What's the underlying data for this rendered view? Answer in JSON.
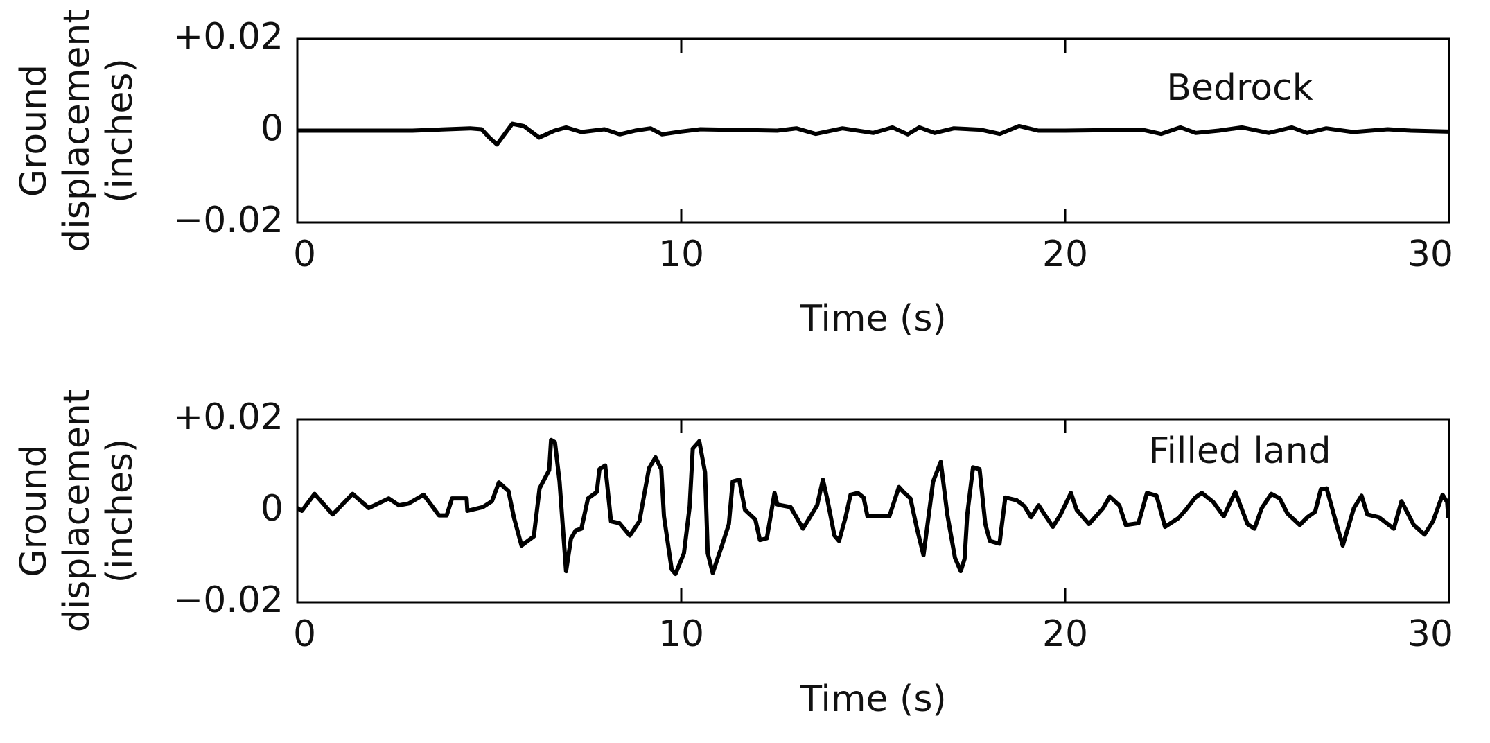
{
  "chart_data": [
    {
      "type": "line",
      "annotation": "Bedrock",
      "xlabel": "Time (s)",
      "ylabel": [
        "Ground",
        "displacement",
        "(inches)"
      ],
      "color": "#000000",
      "x": [
        0,
        3,
        4.5,
        4.8,
        5.0,
        5.2,
        5.6,
        5.9,
        6.3,
        6.7,
        7.0,
        7.4,
        8.0,
        8.4,
        8.8,
        9.2,
        9.5,
        10,
        10.5,
        12.5,
        13,
        13.5,
        14.2,
        15,
        15.5,
        15.9,
        16.2,
        16.6,
        17.1,
        17.8,
        18.3,
        18.8,
        19.3,
        20,
        22,
        22.5,
        23,
        23.4,
        24,
        24.6,
        25.3,
        25.9,
        26.3,
        26.8,
        27.5,
        28.4,
        29,
        30
      ],
      "values": [
        0,
        0,
        0.0005,
        0.0003,
        -0.0015,
        -0.003,
        0.0015,
        0.001,
        -0.0015,
        0,
        0.0007,
        -0.0003,
        0.0003,
        -0.0008,
        0,
        0.0005,
        -0.0008,
        -0.0002,
        0.0003,
        0,
        0.0005,
        -0.0007,
        0.0005,
        -0.0005,
        0.0007,
        -0.0008,
        0.0007,
        -0.0005,
        0.0005,
        0.0002,
        -0.0007,
        0.001,
        0,
        0,
        0.0002,
        -0.0007,
        0.0007,
        -0.0005,
        0,
        0.0007,
        -0.0005,
        0.0007,
        -0.0005,
        0.0005,
        -0.0003,
        0.0003,
        0,
        -0.0002
      ],
      "xlim": [
        0,
        30
      ],
      "xticks": [
        0,
        10,
        20,
        30
      ],
      "ylim": [
        -0.02,
        0.02
      ],
      "yticks": [
        {
          "value": 0.02,
          "label": "+0.02"
        },
        0,
        {
          "value": -0.02,
          "label": "−0.02"
        }
      ]
    },
    {
      "type": "line",
      "annotation": "Filled land",
      "xlabel": "Time (s)",
      "ylabel": [
        "Ground",
        "displacement",
        "(inches)"
      ],
      "color": "#000000",
      "x": [
        0,
        0.12,
        0.45,
        0.92,
        1.44,
        1.86,
        2.38,
        2.65,
        2.9,
        3.29,
        3.69,
        3.89,
        4.03,
        4.41,
        4.43,
        4.83,
        5.07,
        5.25,
        5.5,
        5.64,
        5.84,
        6.16,
        6.31,
        6.56,
        6.61,
        6.71,
        6.83,
        7.0,
        7.13,
        7.25,
        7.4,
        7.57,
        7.8,
        7.87,
        8.02,
        8.17,
        8.39,
        8.66,
        8.91,
        9.16,
        9.33,
        9.48,
        9.55,
        9.75,
        9.85,
        10.07,
        10.22,
        10.3,
        10.47,
        10.62,
        10.69,
        10.82,
        11.06,
        11.24,
        11.34,
        11.51,
        11.66,
        11.93,
        12.05,
        12.23,
        12.43,
        12.5,
        12.6,
        12.85,
        13.17,
        13.54,
        13.69,
        13.81,
        13.99,
        14.11,
        14.28,
        14.41,
        14.6,
        14.75,
        14.85,
        15.42,
        15.67,
        15.79,
        15.97,
        16.14,
        16.31,
        16.56,
        16.76,
        16.93,
        17.13,
        17.28,
        17.38,
        17.45,
        17.6,
        17.77,
        17.92,
        18.04,
        18.29,
        18.44,
        18.74,
        18.94,
        19.11,
        19.31,
        19.48,
        19.68,
        19.88,
        20.15,
        20.3,
        20.62,
        20.99,
        21.16,
        21.41,
        21.58,
        21.91,
        22.13,
        22.38,
        22.6,
        22.95,
        23.14,
        23.39,
        23.56,
        23.86,
        24.13,
        24.43,
        24.75,
        24.93,
        25.12,
        25.37,
        25.59,
        25.79,
        26.11,
        26.31,
        26.51,
        26.66,
        26.81,
        27.08,
        27.23,
        27.52,
        27.72,
        27.87,
        28.17,
        28.56,
        28.76,
        29.08,
        29.36,
        29.58,
        29.83,
        29.95,
        29.98
      ],
      "values": [
        0.0006,
        0,
        0.0037,
        -0.0008,
        0.0037,
        0.0006,
        0.0027,
        0.0012,
        0.0016,
        0.0035,
        -0.001,
        -0.001,
        0.0027,
        0.0027,
        0,
        0.0008,
        0.0021,
        0.0062,
        0.0043,
        -0.0014,
        -0.0076,
        -0.0056,
        0.0049,
        0.0089,
        0.0155,
        0.015,
        0.0064,
        -0.0132,
        -0.006,
        -0.0043,
        -0.0039,
        0.0027,
        0.0041,
        0.0091,
        0.0099,
        -0.0023,
        -0.0027,
        -0.0054,
        -0.0023,
        0.0093,
        0.0117,
        0.0091,
        -0.0012,
        -0.0128,
        -0.0138,
        -0.0093,
        0.001,
        0.0136,
        0.0152,
        0.0084,
        -0.0093,
        -0.0136,
        -0.0076,
        -0.0029,
        0.0064,
        0.0068,
        0.0002,
        -0.0019,
        -0.0064,
        -0.006,
        0.0039,
        0.0014,
        0.0012,
        0.0008,
        -0.0039,
        0.0012,
        0.0068,
        0.0023,
        -0.0054,
        -0.0066,
        -0.0014,
        0.0035,
        0.0039,
        0.0029,
        -0.0012,
        -0.0012,
        0.0052,
        0.0041,
        0.0027,
        -0.0039,
        -0.0097,
        0.0064,
        0.0107,
        -0.0008,
        -0.0103,
        -0.0132,
        -0.0105,
        -0.0008,
        0.0095,
        0.0091,
        -0.0029,
        -0.0066,
        -0.0072,
        0.0029,
        0.0023,
        0.001,
        -0.0014,
        0.0012,
        -0.001,
        -0.0035,
        -0.0008,
        0.0039,
        0.0002,
        -0.0029,
        0.0006,
        0.0031,
        0.0012,
        -0.0031,
        -0.0027,
        0.0039,
        0.0033,
        -0.0035,
        -0.0016,
        0.0002,
        0.0029,
        0.0039,
        0.0019,
        -0.0012,
        0.0041,
        -0.0029,
        -0.0039,
        0.0006,
        0.0037,
        0.0027,
        -0.0006,
        -0.0031,
        -0.0014,
        -0.0002,
        0.0047,
        0.0049,
        -0.0033,
        -0.0076,
        0.0006,
        0.0033,
        -0.0008,
        -0.0014,
        -0.0039,
        0.0021,
        -0.0031,
        -0.0052,
        -0.0023,
        0.0035,
        0.0019,
        -0.0016
      ],
      "xlim": [
        0,
        30
      ],
      "xticks": [
        0,
        10,
        20,
        30
      ],
      "ylim": [
        -0.02,
        0.02
      ],
      "yticks": [
        {
          "value": 0.02,
          "label": "+0.02"
        },
        0,
        {
          "value": -0.02,
          "label": "−0.02"
        }
      ]
    }
  ]
}
